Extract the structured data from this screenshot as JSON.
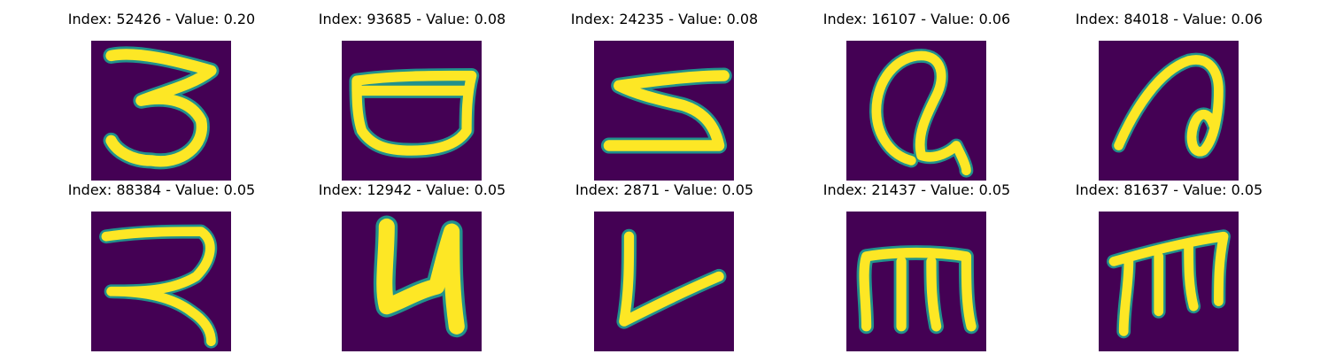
{
  "colors": {
    "background": "#ffffff",
    "image_background": "#440154",
    "stroke_edge": "#21918c",
    "stroke_core": "#fde725"
  },
  "panels": [
    {
      "title": "Index: 52426 - Value: 0.20",
      "index": 52426,
      "value": 0.2
    },
    {
      "title": "Index: 93685 - Value: 0.08",
      "index": 93685,
      "value": 0.08
    },
    {
      "title": "Index: 24235 - Value: 0.08",
      "index": 24235,
      "value": 0.08
    },
    {
      "title": "Index: 16107 - Value: 0.06",
      "index": 16107,
      "value": 0.06
    },
    {
      "title": "Index: 84018 - Value: 0.06",
      "index": 84018,
      "value": 0.06
    },
    {
      "title": "Index: 88384 - Value: 0.05",
      "index": 88384,
      "value": 0.05
    },
    {
      "title": "Index: 12942 - Value: 0.05",
      "index": 12942,
      "value": 0.05
    },
    {
      "title": "Index: 2871 - Value: 0.05",
      "index": 2871,
      "value": 0.05
    },
    {
      "title": "Index: 21437 - Value: 0.05",
      "index": 21437,
      "value": 0.05
    },
    {
      "title": "Index: 81637 - Value: 0.05",
      "index": 81637,
      "value": 0.05
    }
  ]
}
